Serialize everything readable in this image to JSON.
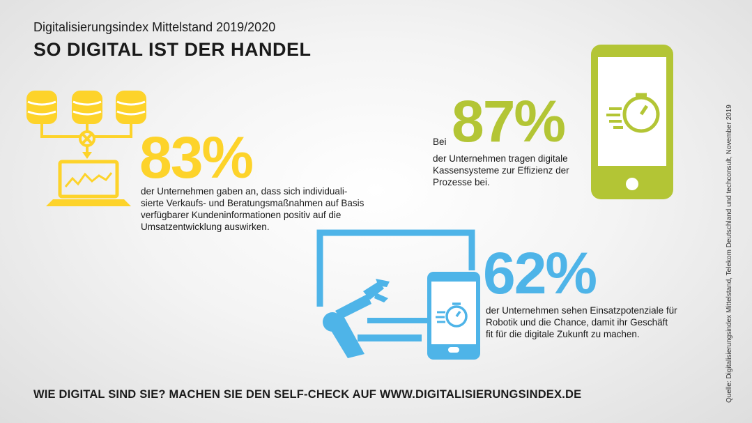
{
  "header": {
    "subtitle": "Digitalisierungsindex Mittelstand 2019/2020",
    "title": "SO DIGITAL IST DER HANDEL"
  },
  "stats": [
    {
      "value": "83%",
      "description": "der Unternehmen gaben an, dass sich individuali- sierte Verkaufs- und Beratungsmaßnahmen auf Basis verfügbarer Kundeninformationen positiv auf die Umsatzentwicklung auswirken.",
      "color": "#fdd32a",
      "icon": "database-laptop-icon"
    },
    {
      "prefix": "Bei",
      "value": "87%",
      "description": "der Unternehmen tragen digitale Kassensysteme zur Effizienz der Prozesse bei.",
      "color": "#b3c535",
      "icon": "smartphone-stopwatch-icon"
    },
    {
      "value": "62%",
      "description": "der Unternehmen sehen Einsatzpotenziale für Robotik und die Chance, damit ihr Geschäft fit für die digitale Zukunft zu machen.",
      "color": "#4eb4e8",
      "icon": "robot-arm-tablet-icon"
    }
  ],
  "footer": {
    "cta": "WIE DIGITAL SIND SIE? MACHEN SIE DEN SELF-CHECK AUF WWW.DIGITALISIERUNGSINDEX.DE",
    "source": "Quelle: Digitalisierungsindex Mittelstand, Telekom Deutschland und techconsult, November 2019"
  }
}
